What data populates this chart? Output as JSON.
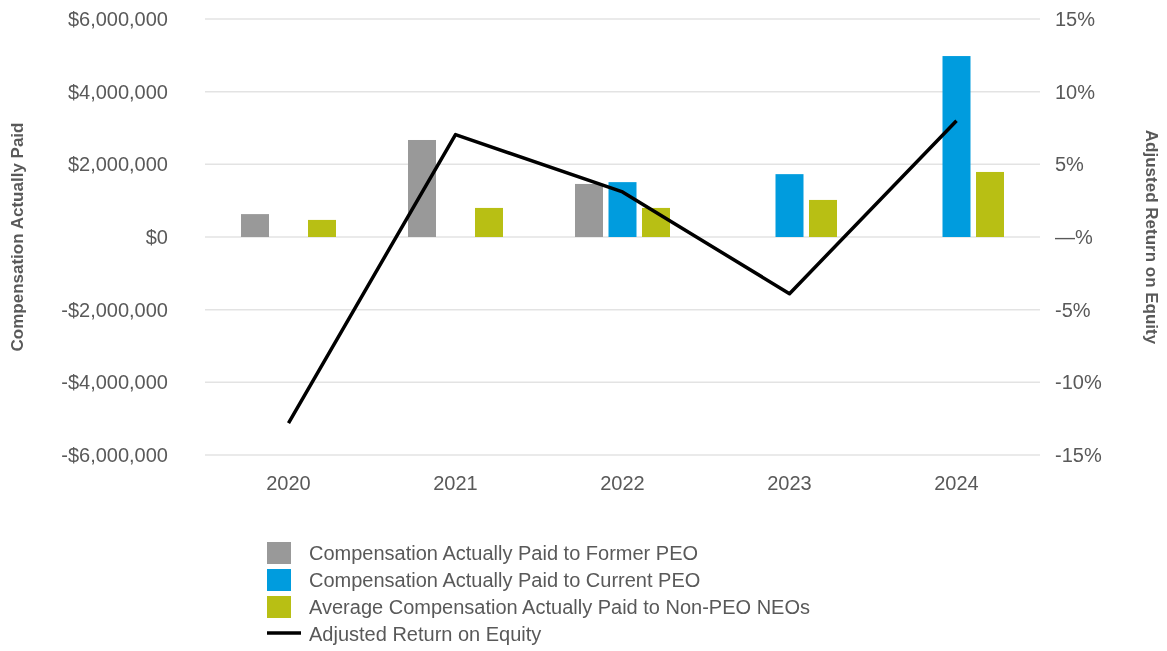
{
  "chart_data": {
    "type": "bar",
    "ylabel": "Compensation Actually Paid",
    "y2label": "Adjusted Return on Equity",
    "categories": [
      "2020",
      "2021",
      "2022",
      "2023",
      "2024"
    ],
    "series": [
      {
        "name": "Compensation Actually Paid to Former PEO",
        "color": "#999999",
        "values": [
          630000,
          2670000,
          1460000,
          null,
          null
        ]
      },
      {
        "name": "Compensation Actually Paid to Current PEO",
        "color": "#009cde",
        "values": [
          null,
          null,
          1510000,
          1730000,
          4980000
        ]
      },
      {
        "name": "Average Compensation Actually Paid to Non-PEO NEOs",
        "color": "#b8bf14",
        "values": [
          470000,
          800000,
          800000,
          1020000,
          1790000
        ]
      },
      {
        "name": "Adjusted Return on Equity",
        "type": "line",
        "axis": "y2",
        "color": "#000000",
        "values": [
          -12.8,
          7.05,
          3.1,
          -3.9,
          8.0
        ]
      }
    ],
    "ylim": [
      -6000000,
      6000000
    ],
    "yticks": [
      {
        "value": -6000000,
        "label": "-$6,000,000"
      },
      {
        "value": -4000000,
        "label": "-$4,000,000"
      },
      {
        "value": -2000000,
        "label": "-$2,000,000"
      },
      {
        "value": 0,
        "label": "$0"
      },
      {
        "value": 2000000,
        "label": "$2,000,000"
      },
      {
        "value": 4000000,
        "label": "$4,000,000"
      },
      {
        "value": 6000000,
        "label": "$6,000,000"
      }
    ],
    "y2lim": [
      -15,
      15
    ],
    "y2ticks": [
      {
        "value": -15,
        "label": "-15%"
      },
      {
        "value": -10,
        "label": "-10%"
      },
      {
        "value": -5,
        "label": "-5%"
      },
      {
        "value": 0,
        "label": "—%"
      },
      {
        "value": 5,
        "label": "5%"
      },
      {
        "value": 10,
        "label": "10%"
      },
      {
        "value": 15,
        "label": "15%"
      }
    ],
    "grid": "y",
    "legend": "bottom"
  }
}
